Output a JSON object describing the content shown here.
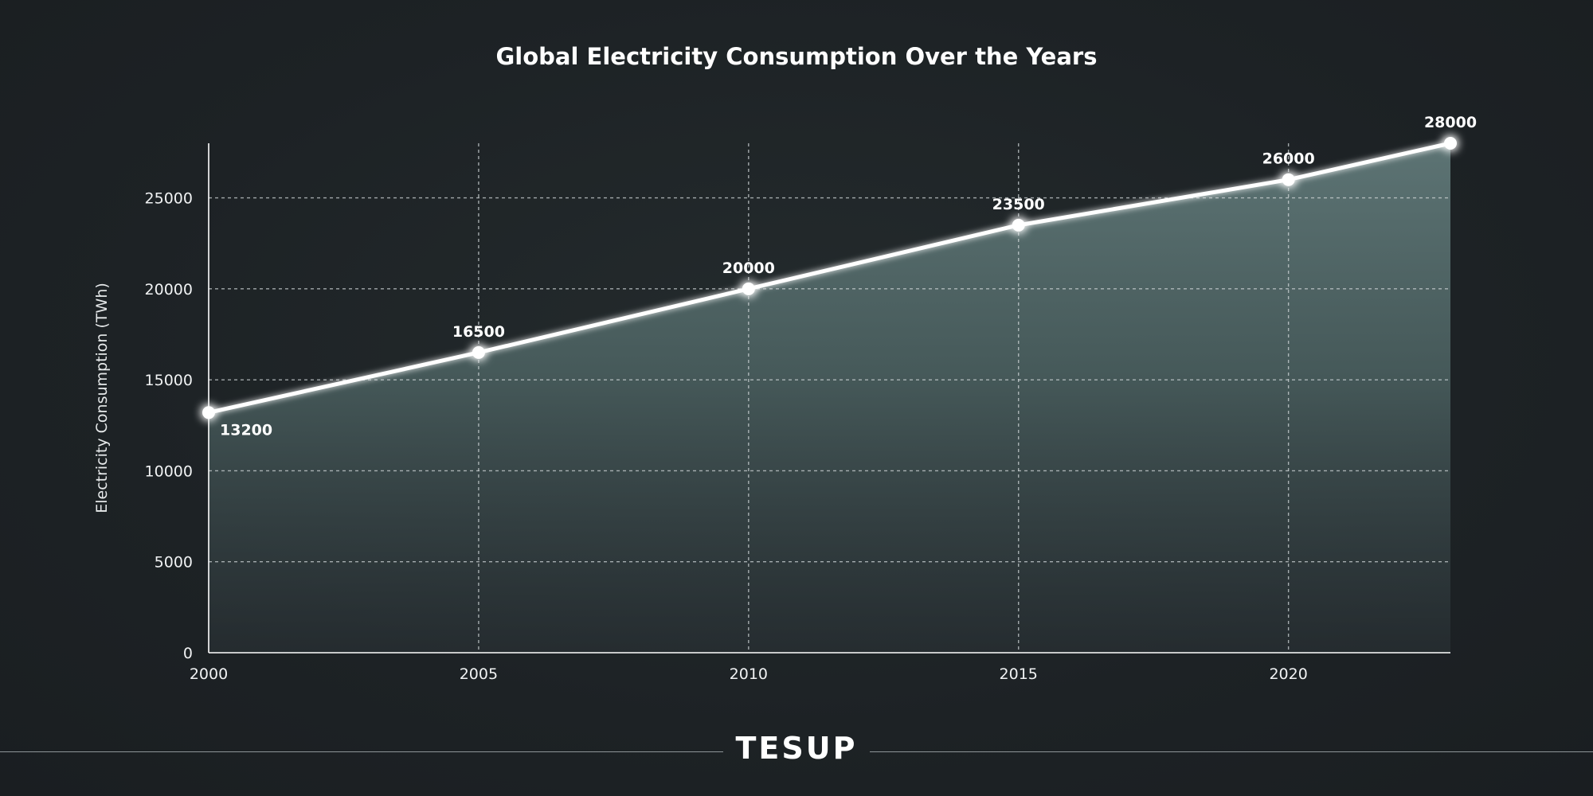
{
  "chart_data": {
    "type": "area",
    "title": "Global Electricity Consumption Over the Years",
    "xlabel": "",
    "ylabel": "Electricity Consumption (TWh)",
    "x": [
      2000,
      2005,
      2010,
      2015,
      2020,
      2023
    ],
    "values": [
      13200,
      16500,
      20000,
      23500,
      26000,
      28000
    ],
    "value_labels": [
      "13200",
      "16500",
      "20000",
      "23500",
      "26000",
      "28000"
    ],
    "xticks": [
      2000,
      2005,
      2010,
      2015,
      2020
    ],
    "xtick_labels": [
      "2000",
      "2005",
      "2010",
      "2015",
      "2020"
    ],
    "yticks": [
      0,
      5000,
      10000,
      15000,
      20000,
      25000
    ],
    "ytick_labels": [
      "0",
      "5000",
      "10000",
      "15000",
      "20000",
      "25000"
    ],
    "xlim": [
      2000,
      2023
    ],
    "ylim": [
      0,
      28000
    ],
    "grid": true,
    "legend": "none",
    "colors": {
      "line": "#ffffff",
      "fill_top": "#5a7170",
      "fill_bottom": "#2a3134",
      "grid": "#cfd5d7",
      "background": "#1d2225"
    }
  },
  "footer": {
    "brand": "TESUP"
  }
}
